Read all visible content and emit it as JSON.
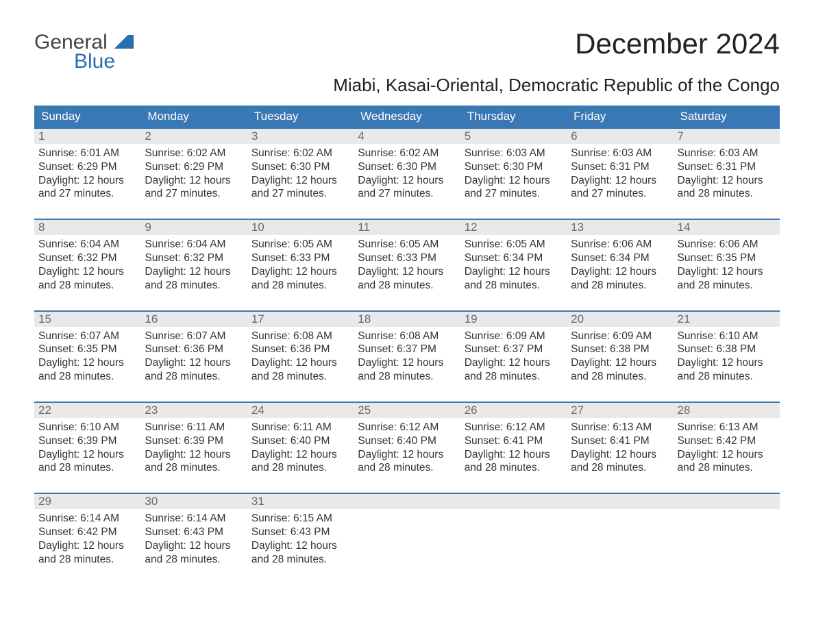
{
  "logo": {
    "text1": "General",
    "text2": "Blue"
  },
  "title": "December 2024",
  "location": "Miabi, Kasai-Oriental, Democratic Republic of the Congo",
  "colors": {
    "header_bg": "#3a77b5",
    "header_text": "#ffffff",
    "daynum_bg": "#e9e9e9",
    "daynum_text": "#6a6a6a",
    "body_text": "#343434",
    "week_border": "#3a77b5",
    "logo_blue": "#2b6db2",
    "page_bg": "#ffffff"
  },
  "typography": {
    "title_fontsize": 42,
    "location_fontsize": 26,
    "weekday_fontsize": 17,
    "daynum_fontsize": 17,
    "body_fontsize": 15.5,
    "font_family": "Arial"
  },
  "weekdays": [
    "Sunday",
    "Monday",
    "Tuesday",
    "Wednesday",
    "Thursday",
    "Friday",
    "Saturday"
  ],
  "weeks": [
    [
      {
        "n": "1",
        "sunrise": "Sunrise: 6:01 AM",
        "sunset": "Sunset: 6:29 PM",
        "d1": "Daylight: 12 hours",
        "d2": "and 27 minutes."
      },
      {
        "n": "2",
        "sunrise": "Sunrise: 6:02 AM",
        "sunset": "Sunset: 6:29 PM",
        "d1": "Daylight: 12 hours",
        "d2": "and 27 minutes."
      },
      {
        "n": "3",
        "sunrise": "Sunrise: 6:02 AM",
        "sunset": "Sunset: 6:30 PM",
        "d1": "Daylight: 12 hours",
        "d2": "and 27 minutes."
      },
      {
        "n": "4",
        "sunrise": "Sunrise: 6:02 AM",
        "sunset": "Sunset: 6:30 PM",
        "d1": "Daylight: 12 hours",
        "d2": "and 27 minutes."
      },
      {
        "n": "5",
        "sunrise": "Sunrise: 6:03 AM",
        "sunset": "Sunset: 6:30 PM",
        "d1": "Daylight: 12 hours",
        "d2": "and 27 minutes."
      },
      {
        "n": "6",
        "sunrise": "Sunrise: 6:03 AM",
        "sunset": "Sunset: 6:31 PM",
        "d1": "Daylight: 12 hours",
        "d2": "and 27 minutes."
      },
      {
        "n": "7",
        "sunrise": "Sunrise: 6:03 AM",
        "sunset": "Sunset: 6:31 PM",
        "d1": "Daylight: 12 hours",
        "d2": "and 28 minutes."
      }
    ],
    [
      {
        "n": "8",
        "sunrise": "Sunrise: 6:04 AM",
        "sunset": "Sunset: 6:32 PM",
        "d1": "Daylight: 12 hours",
        "d2": "and 28 minutes."
      },
      {
        "n": "9",
        "sunrise": "Sunrise: 6:04 AM",
        "sunset": "Sunset: 6:32 PM",
        "d1": "Daylight: 12 hours",
        "d2": "and 28 minutes."
      },
      {
        "n": "10",
        "sunrise": "Sunrise: 6:05 AM",
        "sunset": "Sunset: 6:33 PM",
        "d1": "Daylight: 12 hours",
        "d2": "and 28 minutes."
      },
      {
        "n": "11",
        "sunrise": "Sunrise: 6:05 AM",
        "sunset": "Sunset: 6:33 PM",
        "d1": "Daylight: 12 hours",
        "d2": "and 28 minutes."
      },
      {
        "n": "12",
        "sunrise": "Sunrise: 6:05 AM",
        "sunset": "Sunset: 6:34 PM",
        "d1": "Daylight: 12 hours",
        "d2": "and 28 minutes."
      },
      {
        "n": "13",
        "sunrise": "Sunrise: 6:06 AM",
        "sunset": "Sunset: 6:34 PM",
        "d1": "Daylight: 12 hours",
        "d2": "and 28 minutes."
      },
      {
        "n": "14",
        "sunrise": "Sunrise: 6:06 AM",
        "sunset": "Sunset: 6:35 PM",
        "d1": "Daylight: 12 hours",
        "d2": "and 28 minutes."
      }
    ],
    [
      {
        "n": "15",
        "sunrise": "Sunrise: 6:07 AM",
        "sunset": "Sunset: 6:35 PM",
        "d1": "Daylight: 12 hours",
        "d2": "and 28 minutes."
      },
      {
        "n": "16",
        "sunrise": "Sunrise: 6:07 AM",
        "sunset": "Sunset: 6:36 PM",
        "d1": "Daylight: 12 hours",
        "d2": "and 28 minutes."
      },
      {
        "n": "17",
        "sunrise": "Sunrise: 6:08 AM",
        "sunset": "Sunset: 6:36 PM",
        "d1": "Daylight: 12 hours",
        "d2": "and 28 minutes."
      },
      {
        "n": "18",
        "sunrise": "Sunrise: 6:08 AM",
        "sunset": "Sunset: 6:37 PM",
        "d1": "Daylight: 12 hours",
        "d2": "and 28 minutes."
      },
      {
        "n": "19",
        "sunrise": "Sunrise: 6:09 AM",
        "sunset": "Sunset: 6:37 PM",
        "d1": "Daylight: 12 hours",
        "d2": "and 28 minutes."
      },
      {
        "n": "20",
        "sunrise": "Sunrise: 6:09 AM",
        "sunset": "Sunset: 6:38 PM",
        "d1": "Daylight: 12 hours",
        "d2": "and 28 minutes."
      },
      {
        "n": "21",
        "sunrise": "Sunrise: 6:10 AM",
        "sunset": "Sunset: 6:38 PM",
        "d1": "Daylight: 12 hours",
        "d2": "and 28 minutes."
      }
    ],
    [
      {
        "n": "22",
        "sunrise": "Sunrise: 6:10 AM",
        "sunset": "Sunset: 6:39 PM",
        "d1": "Daylight: 12 hours",
        "d2": "and 28 minutes."
      },
      {
        "n": "23",
        "sunrise": "Sunrise: 6:11 AM",
        "sunset": "Sunset: 6:39 PM",
        "d1": "Daylight: 12 hours",
        "d2": "and 28 minutes."
      },
      {
        "n": "24",
        "sunrise": "Sunrise: 6:11 AM",
        "sunset": "Sunset: 6:40 PM",
        "d1": "Daylight: 12 hours",
        "d2": "and 28 minutes."
      },
      {
        "n": "25",
        "sunrise": "Sunrise: 6:12 AM",
        "sunset": "Sunset: 6:40 PM",
        "d1": "Daylight: 12 hours",
        "d2": "and 28 minutes."
      },
      {
        "n": "26",
        "sunrise": "Sunrise: 6:12 AM",
        "sunset": "Sunset: 6:41 PM",
        "d1": "Daylight: 12 hours",
        "d2": "and 28 minutes."
      },
      {
        "n": "27",
        "sunrise": "Sunrise: 6:13 AM",
        "sunset": "Sunset: 6:41 PM",
        "d1": "Daylight: 12 hours",
        "d2": "and 28 minutes."
      },
      {
        "n": "28",
        "sunrise": "Sunrise: 6:13 AM",
        "sunset": "Sunset: 6:42 PM",
        "d1": "Daylight: 12 hours",
        "d2": "and 28 minutes."
      }
    ],
    [
      {
        "n": "29",
        "sunrise": "Sunrise: 6:14 AM",
        "sunset": "Sunset: 6:42 PM",
        "d1": "Daylight: 12 hours",
        "d2": "and 28 minutes."
      },
      {
        "n": "30",
        "sunrise": "Sunrise: 6:14 AM",
        "sunset": "Sunset: 6:43 PM",
        "d1": "Daylight: 12 hours",
        "d2": "and 28 minutes."
      },
      {
        "n": "31",
        "sunrise": "Sunrise: 6:15 AM",
        "sunset": "Sunset: 6:43 PM",
        "d1": "Daylight: 12 hours",
        "d2": "and 28 minutes."
      },
      {
        "empty": true
      },
      {
        "empty": true
      },
      {
        "empty": true
      },
      {
        "empty": true
      }
    ]
  ]
}
